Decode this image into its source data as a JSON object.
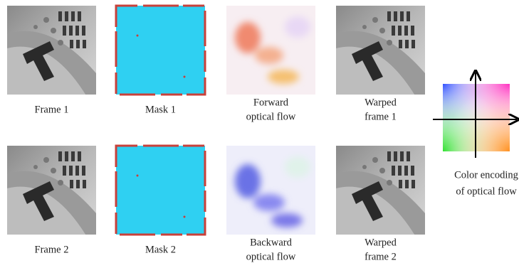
{
  "figure": {
    "rows": [
      {
        "captions": [
          [
            "Frame 1"
          ],
          [
            "Mask 1"
          ],
          [
            "Forward",
            "optical flow"
          ],
          [
            "Warped",
            "frame 1"
          ]
        ]
      },
      {
        "captions": [
          [
            "Frame 2"
          ],
          [
            "Mask 2"
          ],
          [
            "Backward",
            "optical flow"
          ],
          [
            "Warped",
            "frame 2"
          ]
        ]
      }
    ],
    "legend": {
      "caption": [
        "Color encoding",
        "of optical flow"
      ]
    }
  }
}
